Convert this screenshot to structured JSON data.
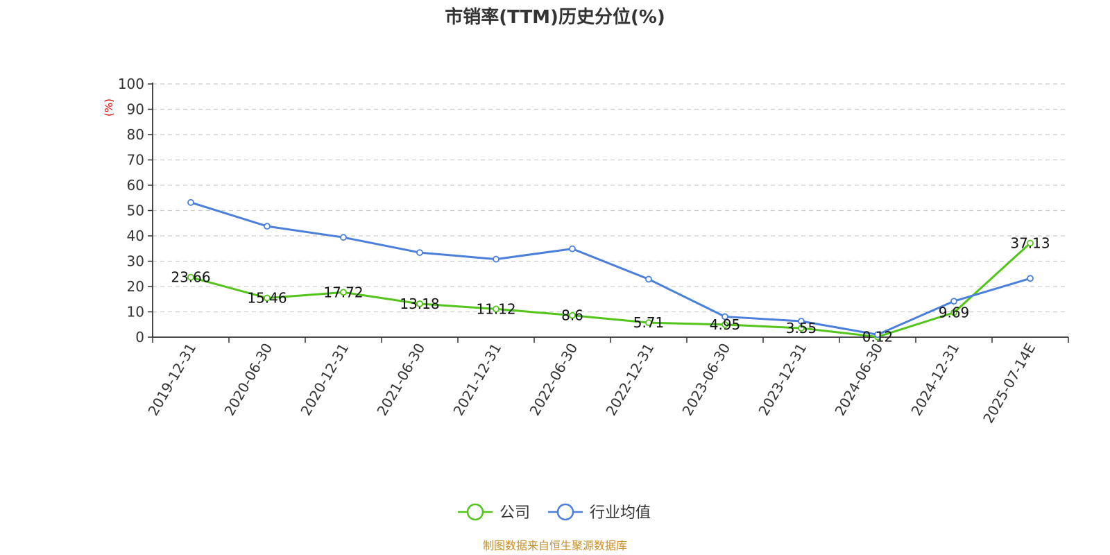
{
  "chart_data": {
    "type": "line",
    "title": "市销率(TTM)历史分位(%)",
    "ylabel": "(%)",
    "ylim": [
      0,
      100
    ],
    "yticks": [
      "0",
      "10",
      "20",
      "30",
      "40",
      "50",
      "60",
      "70",
      "80",
      "90",
      "100"
    ],
    "grid": true,
    "legend_position": "bottom-center",
    "categories": [
      "2019-12-31",
      "2020-06-30",
      "2020-12-31",
      "2021-06-30",
      "2021-12-31",
      "2022-06-30",
      "2022-12-31",
      "2023-06-30",
      "2023-12-31",
      "2024-06-30",
      "2024-12-31",
      "2025-07-14E"
    ],
    "series": [
      {
        "name": "公司",
        "color": "#52c41a",
        "values": [
          23.66,
          15.46,
          17.72,
          13.18,
          11.12,
          8.6,
          5.71,
          4.95,
          3.55,
          0.12,
          9.69,
          37.13
        ],
        "labels": [
          "23.66",
          "15.46",
          "17.72",
          "13.18",
          "11.12",
          "8.6",
          "5.71",
          "4.95",
          "3.55",
          "0.12",
          "9.69",
          "37.13"
        ]
      },
      {
        "name": "行业均值",
        "color": "#4a7fdc",
        "values": [
          53.2,
          43.8,
          39.4,
          33.4,
          30.8,
          34.9,
          22.9,
          8.1,
          6.3,
          1.0,
          14.2,
          23.2
        ]
      }
    ],
    "source": "制图数据来自恒生聚源数据库",
    "colors": {
      "ylabel": "#e00000",
      "source": "#c8902a",
      "grid": "#cccccc",
      "axis": "#333333"
    }
  }
}
